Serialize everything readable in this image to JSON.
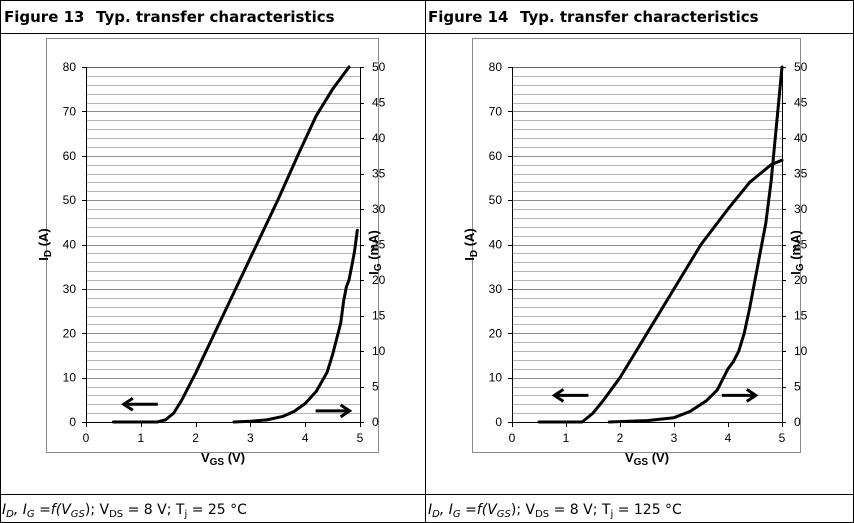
{
  "figures": [
    {
      "number": "Figure 13",
      "title": "Typ. transfer characteristics",
      "caption": {
        "prefix": "I",
        "prefix_sub": "D",
        "mid": ", I",
        "mid_sub": "G",
        "mid2": " =f(V",
        "mid2_sub": "GS",
        "mid3": "); V",
        "mid3_sub": "DS",
        "suffix": " = 8 V; T",
        "suffix_sub": "j",
        "end": " = 25 °C"
      }
    },
    {
      "number": "Figure 14",
      "title": "Typ. transfer characteristics",
      "caption": {
        "prefix": "I",
        "prefix_sub": "D",
        "mid": ", I",
        "mid_sub": "G",
        "mid2": " =f(V",
        "mid2_sub": "GS",
        "mid3": "); V",
        "mid3_sub": "DS",
        "suffix": " = 8 V; T",
        "suffix_sub": "j",
        "end": " = 125 °C"
      }
    }
  ],
  "chart_data": [
    {
      "type": "line",
      "title": "Typ. transfer characteristics",
      "xlabel": "V",
      "xlabel_sub": "GS",
      "xlabel_unit": " (V)",
      "ylabel": "I",
      "ylabel_sub": "D",
      "ylabel_unit": " (A)",
      "y2label": "I",
      "y2label_sub": "G",
      "y2label_unit": " (mA)",
      "xlim": [
        0,
        5
      ],
      "ylim": [
        0,
        80
      ],
      "y2lim": [
        0,
        50
      ],
      "xticks": [
        "0",
        "1",
        "2",
        "3",
        "4",
        "5"
      ],
      "yticks": [
        "0",
        "10",
        "20",
        "30",
        "40",
        "50",
        "60",
        "70",
        "80"
      ],
      "y2ticks": [
        "0",
        "5",
        "10",
        "15",
        "20",
        "25",
        "30",
        "35",
        "40",
        "45",
        "50"
      ],
      "grid": true,
      "series": [
        {
          "axis": "left",
          "x": [
            0.5,
            1.3,
            1.45,
            1.6,
            1.75,
            2.0,
            2.5,
            3.0,
            3.5,
            3.9,
            4.2,
            4.5,
            4.8
          ],
          "y": [
            0,
            0,
            0.5,
            2,
            5,
            11,
            24,
            37,
            50,
            61,
            69,
            75,
            80
          ]
        },
        {
          "axis": "right",
          "x": [
            2.7,
            3.0,
            3.3,
            3.6,
            3.8,
            4.0,
            4.2,
            4.4,
            4.5,
            4.6,
            4.65,
            4.7,
            4.75,
            4.8,
            4.85,
            4.9,
            4.95
          ],
          "y": [
            0,
            0.1,
            0.3,
            0.8,
            1.5,
            2.6,
            4.3,
            7,
            9.5,
            12.5,
            14,
            17,
            19,
            20,
            22,
            24,
            27
          ]
        }
      ],
      "annotations": [
        {
          "type": "arrow-left",
          "x": 1.0,
          "y": 4
        },
        {
          "type": "arrow-right",
          "x": 4.5,
          "y": 2.5
        }
      ]
    },
    {
      "type": "line",
      "title": "Typ. transfer characteristics",
      "xlabel": "V",
      "xlabel_sub": "GS",
      "xlabel_unit": " (V)",
      "ylabel": "I",
      "ylabel_sub": "D",
      "ylabel_unit": " (A)",
      "y2label": "I",
      "y2label_sub": "G",
      "y2label_unit": " (mA)",
      "xlim": [
        0,
        5
      ],
      "ylim": [
        0,
        80
      ],
      "y2lim": [
        0,
        50
      ],
      "xticks": [
        "0",
        "1",
        "2",
        "3",
        "4",
        "5"
      ],
      "yticks": [
        "0",
        "10",
        "20",
        "30",
        "40",
        "50",
        "60",
        "70",
        "80"
      ],
      "y2ticks": [
        "0",
        "5",
        "10",
        "15",
        "20",
        "25",
        "30",
        "35",
        "40",
        "45",
        "50"
      ],
      "grid": true,
      "series": [
        {
          "axis": "left",
          "x": [
            0.5,
            1.3,
            1.5,
            1.7,
            2.0,
            2.5,
            3.0,
            3.5,
            4.0,
            4.2,
            4.4,
            4.6,
            4.8,
            5.0
          ],
          "y": [
            0,
            0,
            2,
            5,
            10,
            20,
            30,
            40,
            48,
            51,
            54,
            56,
            58,
            59
          ]
        },
        {
          "axis": "right",
          "x": [
            1.8,
            2.5,
            3.0,
            3.3,
            3.6,
            3.8,
            4.0,
            4.1,
            4.2,
            4.3,
            4.4,
            4.5,
            4.6,
            4.7,
            4.8,
            4.9,
            5.0
          ],
          "y": [
            0,
            0.2,
            0.6,
            1.5,
            3,
            4.5,
            7.5,
            8.5,
            10,
            12.5,
            16,
            20,
            24,
            28,
            34,
            42,
            50
          ]
        }
      ],
      "annotations": [
        {
          "type": "arrow-left",
          "x": 1.1,
          "y": 6
        },
        {
          "type": "arrow-right",
          "x": 4.2,
          "y": 6
        }
      ]
    }
  ]
}
